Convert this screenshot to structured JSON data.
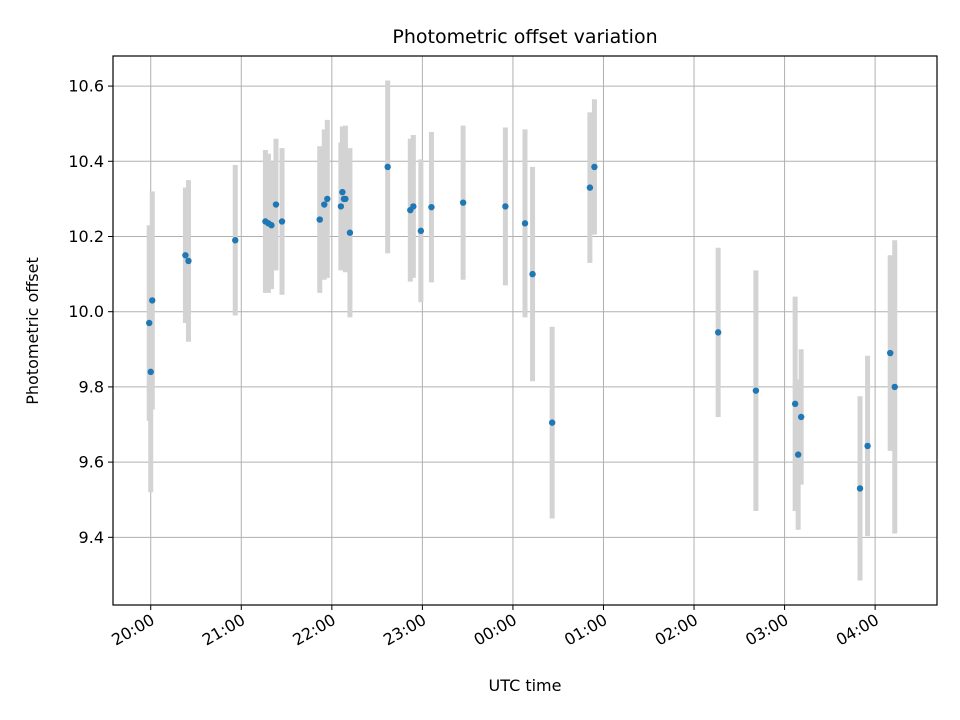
{
  "chart_data": {
    "type": "scatter",
    "title": "Photometric offset variation",
    "xlabel": "UTC time",
    "ylabel": "Photometric offset",
    "grid": true,
    "x_unit": "UTC time, 19:00 to 04:45 UTC",
    "xlim": [
      "19:35",
      "04:41"
    ],
    "ylim": [
      9.22,
      10.68
    ],
    "x_ticks": [
      "20:00",
      "21:00",
      "22:00",
      "23:00",
      "00:00",
      "01:00",
      "02:00",
      "03:00",
      "04:00"
    ],
    "y_ticks": [
      9.4,
      9.6,
      9.8,
      10.0,
      10.2,
      10.4,
      10.6
    ],
    "y_tick_labels": [
      "9.4",
      "9.6",
      "9.8",
      "10.0",
      "10.2",
      "10.4",
      "10.6"
    ],
    "colors": {
      "point": "#1f77b4",
      "errorbar": "#d3d3d3",
      "grid": "#b0b0b0"
    },
    "series": [
      {
        "points": [
          {
            "x": "19:59",
            "y": 9.97,
            "err": 0.26
          },
          {
            "x": "20:00",
            "y": 9.84,
            "err": 0.32
          },
          {
            "x": "20:01",
            "y": 10.03,
            "err": 0.29
          },
          {
            "x": "20:23",
            "y": 10.15,
            "err": 0.18
          },
          {
            "x": "20:25",
            "y": 10.135,
            "err": 0.215
          },
          {
            "x": "20:56",
            "y": 10.19,
            "err": 0.2
          },
          {
            "x": "21:16",
            "y": 10.24,
            "err": 0.19
          },
          {
            "x": "21:18",
            "y": 10.235,
            "err": 0.185
          },
          {
            "x": "21:20",
            "y": 10.23,
            "err": 0.17
          },
          {
            "x": "21:23",
            "y": 10.285,
            "err": 0.175
          },
          {
            "x": "21:27",
            "y": 10.24,
            "err": 0.195
          },
          {
            "x": "21:52",
            "y": 10.245,
            "err": 0.195
          },
          {
            "x": "21:55",
            "y": 10.285,
            "err": 0.2
          },
          {
            "x": "21:57",
            "y": 10.3,
            "err": 0.21
          },
          {
            "x": "22:06",
            "y": 10.28,
            "err": 0.17
          },
          {
            "x": "22:07",
            "y": 10.318,
            "err": 0.175
          },
          {
            "x": "22:08",
            "y": 10.3,
            "err": 0.18
          },
          {
            "x": "22:09",
            "y": 10.3,
            "err": 0.195
          },
          {
            "x": "22:12",
            "y": 10.21,
            "err": 0.225
          },
          {
            "x": "22:37",
            "y": 10.385,
            "err": 0.23
          },
          {
            "x": "22:52",
            "y": 10.27,
            "err": 0.19
          },
          {
            "x": "22:54",
            "y": 10.28,
            "err": 0.19
          },
          {
            "x": "22:59",
            "y": 10.215,
            "err": 0.19
          },
          {
            "x": "23:06",
            "y": 10.278,
            "err": 0.2
          },
          {
            "x": "23:27",
            "y": 10.29,
            "err": 0.205
          },
          {
            "x": "23:55",
            "y": 10.28,
            "err": 0.21
          },
          {
            "x": "00:08",
            "y": 10.235,
            "err": 0.25
          },
          {
            "x": "00:13",
            "y": 10.1,
            "err": 0.285
          },
          {
            "x": "00:26",
            "y": 9.705,
            "err": 0.255
          },
          {
            "x": "00:51",
            "y": 10.33,
            "err": 0.2
          },
          {
            "x": "00:54",
            "y": 10.385,
            "err": 0.18
          },
          {
            "x": "02:16",
            "y": 9.945,
            "err": 0.225
          },
          {
            "x": "02:41",
            "y": 9.79,
            "err": 0.32
          },
          {
            "x": "03:07",
            "y": 9.755,
            "err": 0.285
          },
          {
            "x": "03:09",
            "y": 9.62,
            "err": 0.2
          },
          {
            "x": "03:11",
            "y": 9.72,
            "err": 0.18
          },
          {
            "x": "03:50",
            "y": 9.53,
            "err": 0.245
          },
          {
            "x": "03:55",
            "y": 9.643,
            "err": 0.24
          },
          {
            "x": "04:10",
            "y": 9.89,
            "err": 0.26
          },
          {
            "x": "04:13",
            "y": 9.8,
            "err": 0.39
          }
        ]
      }
    ]
  }
}
